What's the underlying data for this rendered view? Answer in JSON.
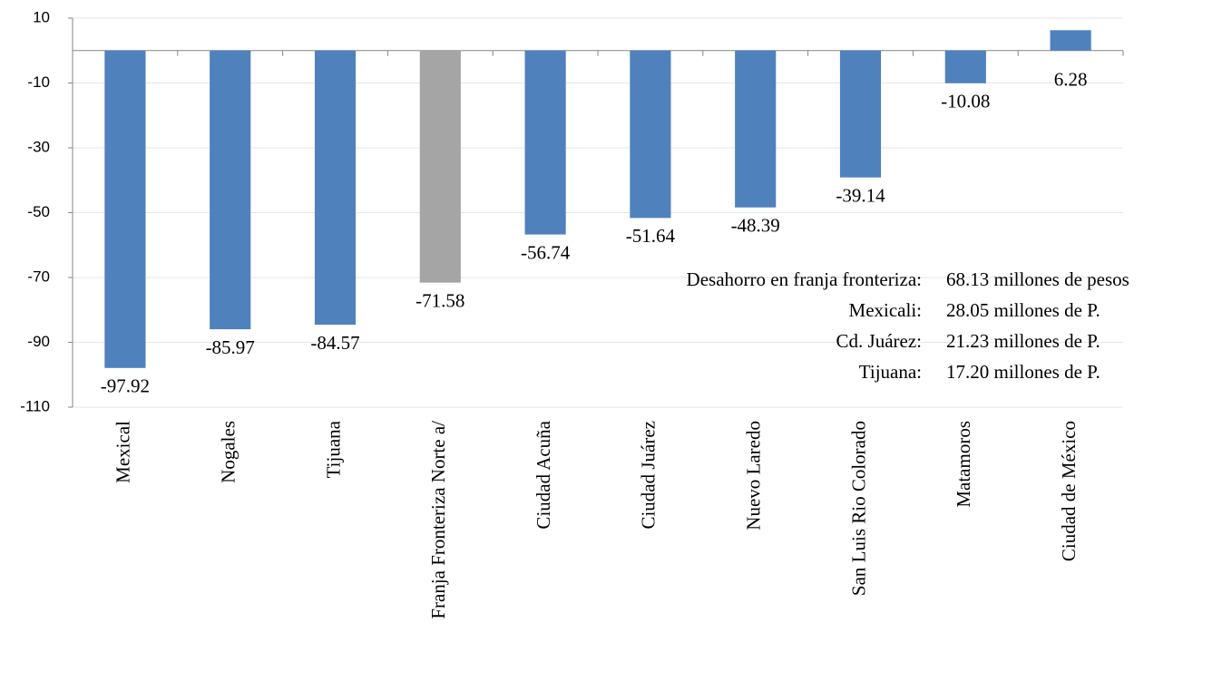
{
  "chart_data": {
    "type": "bar",
    "categories": [
      "Mexical",
      "Nogales",
      "Tijuana",
      "Franja Fronteriza Norte a/",
      "Ciudad Acuña",
      "Ciudad Juárez",
      "Nuevo Laredo",
      "San Luis Rio Colorado",
      "Matamoros",
      "Ciudad de México"
    ],
    "values": [
      -97.92,
      -85.97,
      -84.57,
      -71.58,
      -56.74,
      -51.64,
      -48.39,
      -39.14,
      -10.08,
      6.28
    ],
    "colors": [
      "#4f81bd",
      "#4f81bd",
      "#4f81bd",
      "#a5a5a5",
      "#4f81bd",
      "#4f81bd",
      "#4f81bd",
      "#4f81bd",
      "#4f81bd",
      "#4f81bd"
    ],
    "ylim": [
      -110,
      10
    ],
    "yticks": [
      10,
      -10,
      -30,
      -50,
      -70,
      -90,
      -110
    ],
    "grid": true,
    "annotations": [
      {
        "label": "Desahorro en franja fronteriza:",
        "text": "68.13 millones de pesos"
      },
      {
        "label": "Mexicali:",
        "text": "28.05 millones de P."
      },
      {
        "label": "Cd. Juárez:",
        "text": "21.23 millones de P."
      },
      {
        "label": "Tijuana:",
        "text": "17.20 millones de P."
      }
    ]
  }
}
